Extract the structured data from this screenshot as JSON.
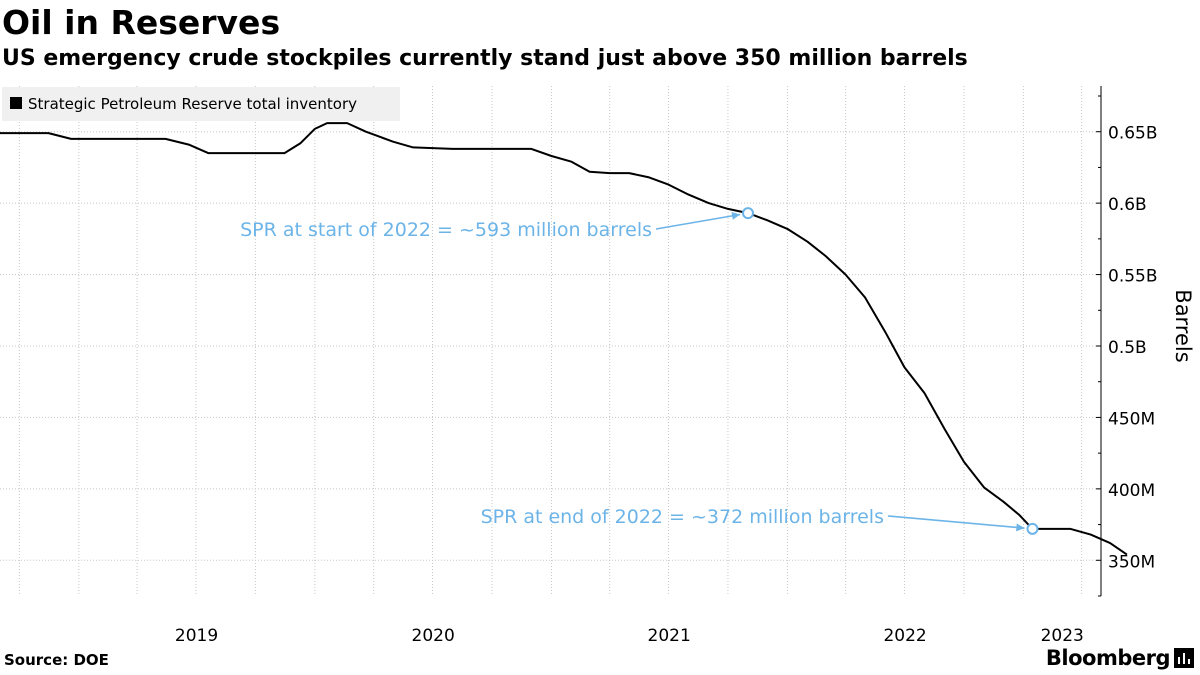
{
  "title": "Oil in Reserves",
  "subtitle": "US emergency crude stockpiles currently stand just above 350 million barrels",
  "source": "Source: DOE",
  "brand": "Bloomberg",
  "colors": {
    "line": "#000000",
    "annotation": "#6cb4e8",
    "grid": "#c8c8c8",
    "legend_bg": "#f0f0f0"
  },
  "chart_data": {
    "type": "line",
    "ylabel": "Barrels",
    "xlabel": "",
    "xlim": [
      "2018-09-01",
      "2023-05-01"
    ],
    "ylim": [
      325,
      682
    ],
    "y_unit": "million barrels",
    "yticks": [
      {
        "value": 350,
        "label": "350M"
      },
      {
        "value": 400,
        "label": "400M"
      },
      {
        "value": 450,
        "label": "450M"
      },
      {
        "value": 500,
        "label": "0.5B"
      },
      {
        "value": 550,
        "label": "0.55B"
      },
      {
        "value": 600,
        "label": "0.6B"
      },
      {
        "value": 650,
        "label": "0.65B"
      }
    ],
    "xticks": [
      {
        "date": "2019-01-01",
        "label": "2019"
      },
      {
        "date": "2020-01-01",
        "label": "2020"
      },
      {
        "date": "2021-01-01",
        "label": "2021"
      },
      {
        "date": "2022-01-01",
        "label": "2022"
      },
      {
        "date": "2023-01-01",
        "label": "2023"
      }
    ],
    "legend": {
      "position": "top-left",
      "entries": [
        "Strategic Petroleum Reserve total inventory"
      ]
    },
    "series": [
      {
        "name": "Strategic Petroleum Reserve total inventory",
        "points": [
          [
            "2018-09-01",
            649
          ],
          [
            "2018-11-15",
            649
          ],
          [
            "2018-12-20",
            645
          ],
          [
            "2019-03-01",
            645
          ],
          [
            "2019-05-15",
            645
          ],
          [
            "2019-06-20",
            641
          ],
          [
            "2019-07-20",
            635
          ],
          [
            "2019-09-01",
            635
          ],
          [
            "2019-11-15",
            635
          ],
          [
            "2019-12-10",
            642
          ],
          [
            "2020-01-01",
            652
          ],
          [
            "2020-01-20",
            656
          ],
          [
            "2020-02-20",
            656
          ],
          [
            "2020-03-20",
            650
          ],
          [
            "2020-05-01",
            643
          ],
          [
            "2020-06-01",
            639
          ],
          [
            "2020-08-01",
            638
          ],
          [
            "2020-10-01",
            638
          ],
          [
            "2020-12-01",
            638
          ],
          [
            "2021-01-01",
            633
          ],
          [
            "2021-02-01",
            629
          ],
          [
            "2021-03-01",
            622
          ],
          [
            "2021-04-01",
            621
          ],
          [
            "2021-05-01",
            621
          ],
          [
            "2021-06-01",
            618
          ],
          [
            "2021-07-01",
            613
          ],
          [
            "2021-08-01",
            606
          ],
          [
            "2021-09-01",
            600
          ],
          [
            "2021-10-01",
            596
          ],
          [
            "2021-11-01",
            593
          ],
          [
            "2021-12-01",
            588
          ],
          [
            "2022-01-01",
            582
          ],
          [
            "2022-02-01",
            573
          ],
          [
            "2022-03-01",
            563
          ],
          [
            "2022-04-01",
            550
          ],
          [
            "2022-05-01",
            534
          ],
          [
            "2022-06-01",
            510
          ],
          [
            "2022-07-01",
            485
          ],
          [
            "2022-08-01",
            467
          ],
          [
            "2022-09-01",
            442
          ],
          [
            "2022-10-01",
            419
          ],
          [
            "2022-11-01",
            401
          ],
          [
            "2022-12-01",
            391
          ],
          [
            "2022-12-25",
            382
          ],
          [
            "2023-01-15",
            372
          ],
          [
            "2023-03-15",
            372
          ],
          [
            "2023-04-15",
            368
          ],
          [
            "2023-05-15",
            362
          ],
          [
            "2023-06-10",
            354
          ]
        ]
      }
    ],
    "annotations": [
      {
        "text": "SPR at start of 2022 = ~593 million barrels",
        "date": "2021-11-01",
        "value": 593
      },
      {
        "text": "SPR at end of 2022 = ~372 million barrels",
        "date": "2023-01-15",
        "value": 372
      }
    ]
  }
}
